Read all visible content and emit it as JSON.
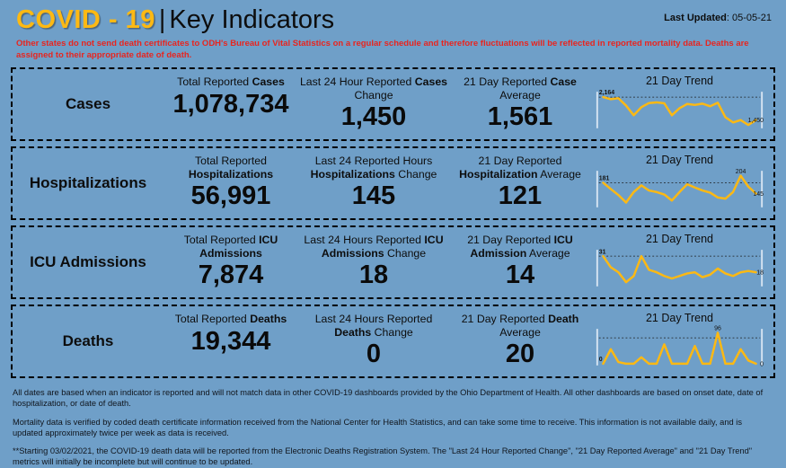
{
  "header": {
    "title_left": "COVID - 19",
    "separator": "|",
    "title_right": "Key Indicators",
    "last_updated_label": "Last Updated",
    "last_updated_sep": ": ",
    "last_updated_value": "05-05-21"
  },
  "alert": "Other states do not send death certificates to ODH's Bureau of Vital Statistics on a regular schedule and therefore fluctuations will be reflected in reported mortality data. Deaths are assigned to their appropriate date of death.",
  "palette": {
    "background": "#6f9fc8",
    "title_gold": "#FDB913",
    "line_yellow": "#FDB913",
    "alert_red": "#E8251F",
    "border": "#000000",
    "whisker": "#d7e5f2",
    "text_dark": "#0d0d0d"
  },
  "rows": [
    {
      "label": "Cases",
      "metrics": [
        {
          "header": [
            {
              "t": "Total Reported ",
              "b": false
            },
            {
              "t": "Cases",
              "b": true
            }
          ],
          "value": "1,078,734"
        },
        {
          "header": [
            {
              "t": "Last 24 Hour Reported ",
              "b": false
            },
            {
              "t": "Cases",
              "b": true
            },
            {
              "t": " Change",
              "b": false
            }
          ],
          "value": "1,450"
        },
        {
          "header": [
            {
              "t": "21 Day Reported ",
              "b": false
            },
            {
              "t": "Case",
              "b": true
            },
            {
              "t": " Average",
              "b": false
            }
          ],
          "value": "1,561"
        }
      ],
      "trend_title": "21 Day Trend",
      "chart_index": 0
    },
    {
      "label": "Hospitalizations",
      "metrics": [
        {
          "header": [
            {
              "t": "Total Reported ",
              "b": false
            },
            {
              "t": "Hospitalizations",
              "b": true
            }
          ],
          "value": "56,991"
        },
        {
          "header": [
            {
              "t": "Last 24 Reported Hours ",
              "b": false
            },
            {
              "t": "Hospitalizations",
              "b": true
            },
            {
              "t": " Change",
              "b": false
            }
          ],
          "value": "145"
        },
        {
          "header": [
            {
              "t": "21 Day Reported ",
              "b": false
            },
            {
              "t": "Hospitalization",
              "b": true
            },
            {
              "t": " Average",
              "b": false
            }
          ],
          "value": "121"
        }
      ],
      "trend_title": "21 Day Trend",
      "chart_index": 1
    },
    {
      "label": "ICU Admissions",
      "metrics": [
        {
          "header": [
            {
              "t": "Total Reported ",
              "b": false
            },
            {
              "t": "ICU Admissions",
              "b": true
            }
          ],
          "value": "7,874"
        },
        {
          "header": [
            {
              "t": "Last 24 Hours Reported ",
              "b": false
            },
            {
              "t": "ICU Admissions",
              "b": true
            },
            {
              "t": " Change",
              "b": false
            }
          ],
          "value": "18"
        },
        {
          "header": [
            {
              "t": "21 Day Reported ",
              "b": false
            },
            {
              "t": "ICU Admission",
              "b": true
            },
            {
              "t": " Average",
              "b": false
            }
          ],
          "value": "14"
        }
      ],
      "trend_title": "21 Day Trend",
      "chart_index": 2
    },
    {
      "label": "Deaths",
      "metrics": [
        {
          "header": [
            {
              "t": "Total Reported ",
              "b": false
            },
            {
              "t": "Deaths",
              "b": true
            }
          ],
          "value": "19,344"
        },
        {
          "header": [
            {
              "t": "Last 24 Hours Reported ",
              "b": false
            },
            {
              "t": "Deaths",
              "b": true
            },
            {
              "t": " Change",
              "b": false
            }
          ],
          "value": "0"
        },
        {
          "header": [
            {
              "t": "21 Day Reported ",
              "b": false
            },
            {
              "t": "Death",
              "b": true
            },
            {
              "t": " Average",
              "b": false
            }
          ],
          "value": "20"
        }
      ],
      "trend_title": "21 Day Trend",
      "chart_index": 3
    }
  ],
  "chart_data": [
    {
      "type": "line",
      "title": "Cases 21 Day Trend",
      "x_range": [
        1,
        21
      ],
      "values": [
        2164,
        2100,
        2130,
        1900,
        1600,
        1850,
        1980,
        2000,
        1970,
        1600,
        1820,
        1950,
        1920,
        1960,
        1880,
        1990,
        1540,
        1380,
        1450,
        1300,
        1450
      ],
      "values_estimated": true,
      "ylim": [
        1250,
        2250
      ],
      "ref_value": 2164,
      "labels": {
        "start": "2,164",
        "end": "1,450",
        "peak": null,
        "peak_index": null
      },
      "legend": "none",
      "grid": "ref-line-only"
    },
    {
      "type": "line",
      "title": "Hospitalizations 21 Day Trend",
      "x_range": [
        1,
        21
      ],
      "values": [
        181,
        160,
        140,
        115,
        150,
        172,
        155,
        150,
        142,
        122,
        150,
        176,
        165,
        155,
        148,
        132,
        128,
        150,
        204,
        168,
        145
      ],
      "values_estimated": true,
      "ylim": [
        105,
        212
      ],
      "ref_value": 181,
      "labels": {
        "start": "181",
        "end": "145",
        "peak": "204",
        "peak_index": 18
      },
      "legend": "none",
      "grid": "ref-line-only"
    },
    {
      "type": "line",
      "title": "ICU Admissions 21 Day Trend",
      "x_range": [
        1,
        21
      ],
      "values": [
        31,
        22,
        18,
        10,
        15,
        31,
        20,
        18,
        15,
        13,
        15,
        17,
        18,
        14,
        16,
        21,
        17,
        15,
        18,
        19,
        18
      ],
      "values_estimated": true,
      "ylim": [
        8,
        34
      ],
      "ref_value": 31,
      "labels": {
        "start": "31",
        "end": "18",
        "peak": null,
        "peak_index": null
      },
      "legend": "none",
      "grid": "ref-line-only"
    },
    {
      "type": "line",
      "title": "Deaths 21 Day Trend",
      "x_range": [
        1,
        21
      ],
      "values": [
        0,
        45,
        5,
        0,
        0,
        20,
        0,
        0,
        60,
        0,
        0,
        0,
        55,
        0,
        0,
        96,
        0,
        0,
        45,
        10,
        0
      ],
      "values_estimated": true,
      "ylim": [
        0,
        100
      ],
      "ref_value": 80,
      "labels": {
        "start": "0",
        "end": "0",
        "peak": "96",
        "peak_index": 15
      },
      "legend": "none",
      "grid": "ref-line-only"
    }
  ],
  "footer": {
    "notes": [
      "All dates are based when an indicator is reported and will not match data in other COVID-19 dashboards provided by the Ohio Department of Health. All other dashboards are based on onset date, date of hospitalization, or date of death.",
      "Mortality data is verified by coded death certificate information received from the National Center for Health Statistics, and can take some time to receive. This information is not available daily, and is updated approximately twice per week as data is received.",
      "**Starting 03/02/2021, the COVID-19 death data will be reported from the Electronic Deaths Registration System. The \"Last 24 Hour Reported Change\", \"21 Day Reported Average\" and \"21 Day Trend\" metrics will initially be incomplete but will continue to be updated."
    ]
  }
}
